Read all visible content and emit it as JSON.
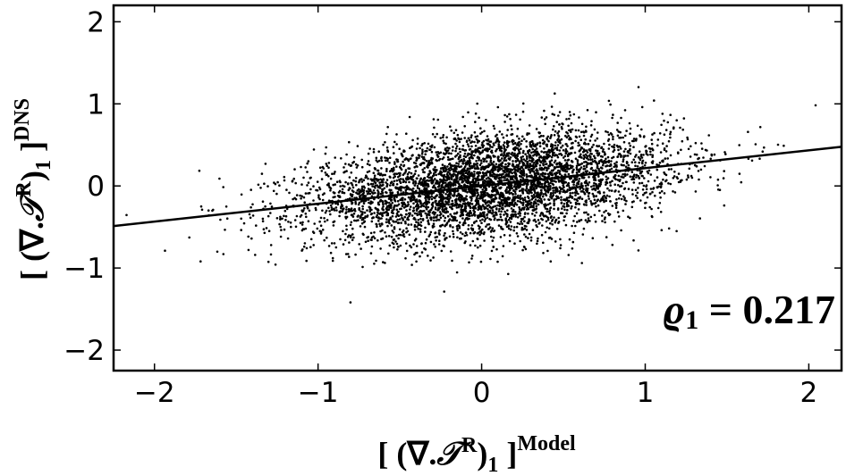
{
  "chart_data": {
    "type": "scatter",
    "title": "",
    "xlabel": {
      "prefix": "[ (∇.",
      "symbol": "𝒯",
      "sup_R": "R",
      "close": ")",
      "sub": "1",
      "bracket": " ]",
      "sup": "Model"
    },
    "ylabel": {
      "prefix": "[ (∇.",
      "symbol": "𝒯",
      "sup_R": "R",
      "close": ")",
      "sub": "1",
      "bracket": " ]",
      "sup": "DNS"
    },
    "xlim": [
      -2.25,
      2.2
    ],
    "ylim": [
      -2.25,
      2.2
    ],
    "xticks": [
      {
        "value": -2,
        "label": "−2"
      },
      {
        "value": -1,
        "label": "−1"
      },
      {
        "value": 0,
        "label": "0"
      },
      {
        "value": 1,
        "label": "1"
      },
      {
        "value": 2,
        "label": "2"
      }
    ],
    "yticks": [
      {
        "value": -2,
        "label": "−2"
      },
      {
        "value": -1,
        "label": "−1"
      },
      {
        "value": 0,
        "label": "0"
      },
      {
        "value": 1,
        "label": "1"
      },
      {
        "value": 2,
        "label": "2"
      }
    ],
    "fit_line": {
      "slope": 0.217,
      "intercept": 0.0
    },
    "annotation": {
      "symbol": "ϱ",
      "sub": "1",
      "text": " = 0.217"
    },
    "points": {
      "count": 5000,
      "x_mean": 0.05,
      "x_std": 0.55,
      "y_noise_std": 0.33,
      "slope": 0.217,
      "seed": 12345
    },
    "grid": false,
    "legend": "none"
  }
}
